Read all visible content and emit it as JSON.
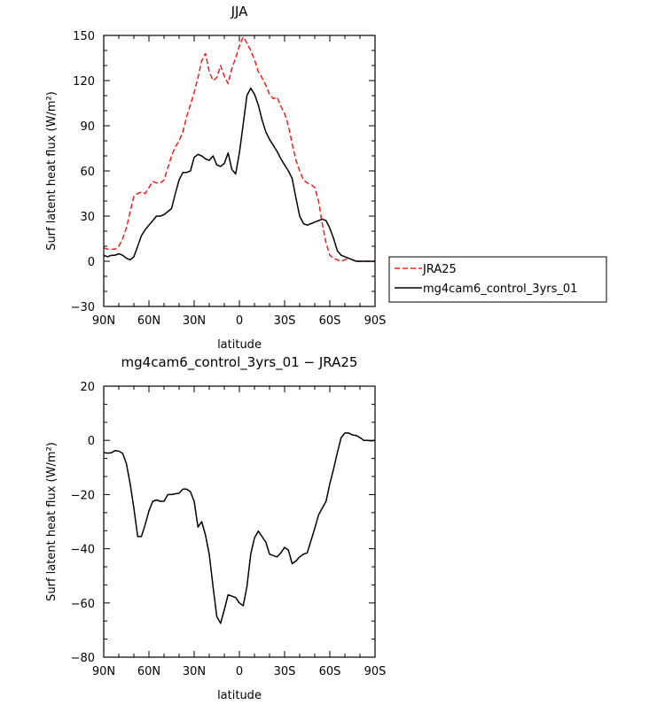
{
  "chart_data": [
    {
      "type": "line",
      "title": "JJA",
      "xlabel": "latitude",
      "ylabel": "Surf latent heat flux (W/m²)",
      "xlim": [
        90,
        -90
      ],
      "ylim": [
        -30,
        150
      ],
      "xticks": [
        90,
        60,
        30,
        0,
        -30,
        -60,
        -90
      ],
      "xtick_labels": [
        "90N",
        "60N",
        "30N",
        "0",
        "30S",
        "60S",
        "90S"
      ],
      "yticks": [
        -30,
        0,
        30,
        60,
        90,
        120,
        150
      ],
      "ytick_labels": [
        "−30",
        "0",
        "30",
        "60",
        "90",
        "120",
        "150"
      ],
      "legend_position": "right",
      "series": [
        {
          "name": "JRA25",
          "color": "#e8231f",
          "dash": "dashed",
          "x": [
            90,
            87.5,
            85,
            82.5,
            80,
            77.5,
            75,
            72.5,
            70,
            67.5,
            65,
            62.5,
            60,
            57.5,
            55,
            52.5,
            50,
            47.5,
            45,
            42.5,
            40,
            37.5,
            35,
            32.5,
            30,
            27.5,
            25,
            22.5,
            20,
            17.5,
            15,
            12.5,
            10,
            7.5,
            5,
            2.5,
            0,
            -2.5,
            -5,
            -7.5,
            -10,
            -12.5,
            -15,
            -17.5,
            -20,
            -22.5,
            -25,
            -27.5,
            -30,
            -32.5,
            -35,
            -37.5,
            -40,
            -42.5,
            -45,
            -47.5,
            -50,
            -52.5,
            -55,
            -57.5,
            -60,
            -62.5,
            -65,
            -67.5,
            -70,
            -72.5,
            -75,
            -77.5,
            -80,
            -82.5,
            -85,
            -87.5,
            -90
          ],
          "y": [
            9,
            8,
            8,
            8,
            10,
            15,
            22,
            33,
            43,
            45,
            46,
            45,
            49,
            53,
            52,
            52,
            54,
            62,
            70,
            76,
            80,
            86,
            96,
            104,
            112,
            122,
            133,
            138,
            126,
            120,
            122,
            130,
            123,
            118,
            128,
            135,
            143,
            149,
            145,
            140,
            134,
            126,
            122,
            117,
            111,
            108,
            109,
            103,
            98,
            90,
            78,
            67,
            60,
            54,
            52,
            51,
            49,
            40,
            25,
            12,
            4,
            2,
            1,
            0,
            1,
            2,
            1,
            0,
            0,
            0,
            0,
            0,
            0
          ]
        },
        {
          "name": "mg4cam6_control_3yrs_01",
          "color": "#000000",
          "dash": "solid",
          "x": [
            90,
            87.5,
            85,
            82.5,
            80,
            77.5,
            75,
            72.5,
            70,
            67.5,
            65,
            62.5,
            60,
            57.5,
            55,
            52.5,
            50,
            47.5,
            45,
            42.5,
            40,
            37.5,
            35,
            32.5,
            30,
            27.5,
            25,
            22.5,
            20,
            17.5,
            15,
            12.5,
            10,
            7.5,
            5,
            2.5,
            0,
            -2.5,
            -5,
            -7.5,
            -10,
            -12.5,
            -15,
            -17.5,
            -20,
            -22.5,
            -25,
            -27.5,
            -30,
            -32.5,
            -35,
            -37.5,
            -40,
            -42.5,
            -45,
            -47.5,
            -50,
            -52.5,
            -55,
            -57.5,
            -60,
            -62.5,
            -65,
            -67.5,
            -70,
            -72.5,
            -75,
            -77.5,
            -80,
            -82.5,
            -85,
            -87.5,
            -90
          ],
          "y": [
            4,
            3,
            4,
            4,
            5,
            4,
            2,
            1,
            3,
            10,
            17,
            21,
            24,
            27,
            30,
            30,
            31,
            33,
            35,
            45,
            54,
            59,
            59,
            60,
            69,
            71,
            70,
            68,
            67,
            70,
            64,
            63,
            65,
            72,
            61,
            58,
            72,
            91,
            110,
            115,
            111,
            104,
            94,
            86,
            81,
            77,
            73,
            68,
            64,
            60,
            55,
            42,
            30,
            25,
            24,
            25,
            26,
            27,
            28,
            27,
            22,
            15,
            7,
            4,
            3,
            2,
            1,
            0,
            0,
            0,
            0,
            0,
            0
          ]
        }
      ]
    },
    {
      "type": "line",
      "title": "mg4cam6_control_3yrs_01 − JRA25",
      "xlabel": "latitude",
      "ylabel": "Surf latent heat flux (W/m²)",
      "xlim": [
        90,
        -90
      ],
      "ylim": [
        -80,
        20
      ],
      "xticks": [
        90,
        60,
        30,
        0,
        -30,
        -60,
        -90
      ],
      "xtick_labels": [
        "90N",
        "60N",
        "30N",
        "0",
        "30S",
        "60S",
        "90S"
      ],
      "yticks": [
        -80,
        -60,
        -40,
        -20,
        0,
        20
      ],
      "ytick_labels": [
        "−80",
        "−60",
        "−40",
        "−20",
        "0",
        "20"
      ],
      "series": [
        {
          "color": "#000000",
          "dash": "solid",
          "x": [
            90,
            87.5,
            85,
            82.5,
            80,
            77.5,
            75,
            72.5,
            70,
            67.5,
            65,
            62.5,
            60,
            57.5,
            55,
            52.5,
            50,
            47.5,
            45,
            42.5,
            40,
            37.5,
            35,
            32.5,
            30,
            27.5,
            25,
            22.5,
            20,
            17.5,
            15,
            12.5,
            10,
            7.5,
            5,
            2.5,
            0,
            -2.5,
            -5,
            -7.5,
            -10,
            -12.5,
            -15,
            -17.5,
            -20,
            -22.5,
            -25,
            -27.5,
            -30,
            -32.5,
            -35,
            -37.5,
            -40,
            -42.5,
            -45,
            -47.5,
            -50,
            -52.5,
            -55,
            -57.5,
            -60,
            -62.5,
            -65,
            -67.5,
            -70,
            -72.5,
            -75,
            -77.5,
            -80,
            -82.5,
            -85,
            -87.5,
            -90
          ],
          "y": [
            -4.5,
            -4.7,
            -4.6,
            -3.8,
            -4,
            -4.8,
            -8.5,
            -16,
            -25,
            -35.5,
            -35.5,
            -31,
            -26,
            -22.5,
            -22,
            -22.5,
            -22.5,
            -20,
            -20,
            -19.7,
            -19.5,
            -18,
            -18,
            -19,
            -22.5,
            -32,
            -30,
            -35,
            -42,
            -54,
            -65,
            -67.5,
            -62.5,
            -57,
            -57.5,
            -58,
            -60,
            -61,
            -54,
            -42,
            -36,
            -33.5,
            -35.5,
            -37.5,
            -42,
            -42.5,
            -43,
            -41.5,
            -39.5,
            -40.5,
            -45.5,
            -44.5,
            -43,
            -42,
            -41.5,
            -37,
            -32.5,
            -27.5,
            -25,
            -22.5,
            -16,
            -10.5,
            -4.5,
            1,
            2.7,
            2.7,
            2,
            1.8,
            1,
            0,
            0,
            -0.2,
            0
          ]
        }
      ]
    }
  ]
}
